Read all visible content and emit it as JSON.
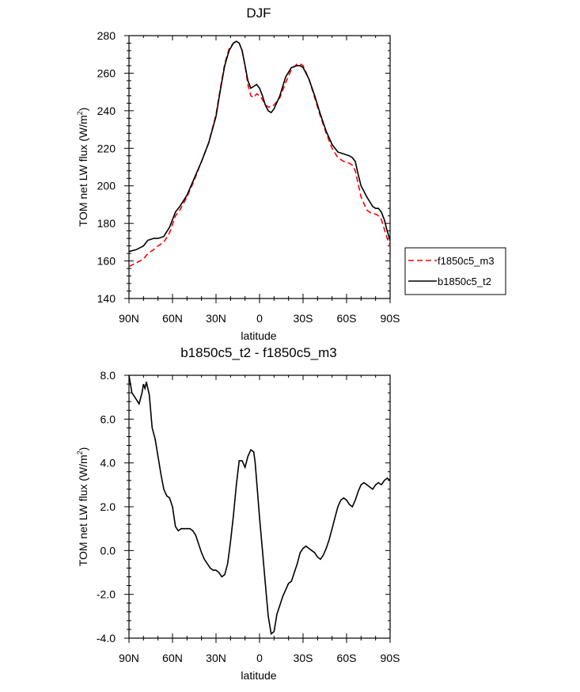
{
  "colors": {
    "series_a": "#ff0000",
    "series_b": "#000000",
    "axis": "#000000",
    "background": "#ffffff"
  },
  "chart_data": [
    {
      "type": "line",
      "title": "DJF",
      "xlabel": "latitude",
      "ylabel": "TOM net LW flux (W/m",
      "ylabel_sup": "2",
      "ylabel_close": ")",
      "xlim": [
        90,
        -90
      ],
      "ylim": [
        140,
        280
      ],
      "xticks": [
        90,
        60,
        30,
        0,
        -30,
        -60,
        -90
      ],
      "xticklabels": [
        "90N",
        "60N",
        "30N",
        "0",
        "30S",
        "60S",
        "90S"
      ],
      "yticks": [
        140,
        160,
        180,
        200,
        220,
        240,
        260,
        280
      ],
      "yticklabels": [
        "140",
        "160",
        "180",
        "200",
        "220",
        "240",
        "260",
        "280"
      ],
      "legend": {
        "position": "right",
        "entries": [
          "f1850c5_m3",
          "b1850c5_t2"
        ]
      },
      "series": [
        {
          "name": "b1850c5_t2",
          "style": "solid",
          "x": [
            90,
            85,
            80,
            77,
            73,
            70,
            66,
            62,
            58,
            55,
            50,
            45,
            40,
            35,
            30,
            27,
            24,
            21,
            18,
            16,
            14,
            12,
            10,
            8,
            6,
            4,
            2,
            0,
            -2,
            -4,
            -6,
            -8,
            -10,
            -14,
            -18,
            -22,
            -26,
            -28,
            -30,
            -34,
            -38,
            -42,
            -46,
            -50,
            -54,
            -58,
            -62,
            -64,
            -66,
            -68,
            -70,
            -74,
            -78,
            -80,
            -82,
            -84,
            -86,
            -88,
            -90
          ],
          "y": [
            165,
            166,
            168,
            171,
            172,
            172,
            173,
            178,
            186,
            189,
            195,
            204,
            213,
            223,
            237,
            251,
            264,
            272,
            276,
            277,
            276,
            272,
            264,
            256,
            252,
            253,
            254,
            252,
            248,
            243,
            240,
            239,
            241,
            248,
            258,
            263,
            264,
            264,
            263,
            257,
            248,
            238,
            229,
            222,
            218,
            217,
            216,
            215,
            213,
            206,
            200,
            194,
            189,
            188,
            188,
            186,
            182,
            176,
            171
          ]
        },
        {
          "name": "f1850c5_m3",
          "style": "dashed",
          "x": [
            90,
            85,
            80,
            77,
            73,
            70,
            66,
            62,
            58,
            55,
            50,
            45,
            40,
            35,
            30,
            27,
            24,
            21,
            18,
            16,
            14,
            12,
            10,
            8,
            6,
            4,
            2,
            0,
            -2,
            -4,
            -6,
            -8,
            -10,
            -14,
            -18,
            -22,
            -26,
            -28,
            -30,
            -34,
            -38,
            -42,
            -46,
            -50,
            -54,
            -58,
            -62,
            -64,
            -66,
            -68,
            -70,
            -74,
            -78,
            -80,
            -82,
            -84,
            -86,
            -88,
            -90
          ],
          "y": [
            157,
            159,
            161,
            164,
            166,
            168,
            170,
            175,
            184,
            187,
            194,
            203,
            213,
            223,
            238,
            252,
            265,
            273,
            276,
            277,
            276,
            272,
            264,
            254,
            248,
            247,
            249,
            248,
            246,
            243,
            242,
            242,
            243,
            247,
            255,
            262,
            265,
            265,
            264,
            257,
            247,
            237,
            228,
            220,
            215,
            213,
            212,
            211,
            208,
            201,
            194,
            187,
            185,
            185,
            184,
            182,
            177,
            172,
            168
          ]
        }
      ]
    },
    {
      "type": "line",
      "title": "b1850c5_t2 - f1850c5_m3",
      "xlabel": "latitude",
      "ylabel": "TOM net LW flux (W/m",
      "ylabel_sup": "2",
      "ylabel_close": ")",
      "xlim": [
        90,
        -90
      ],
      "ylim": [
        -4,
        8
      ],
      "xticks": [
        90,
        60,
        30,
        0,
        -30,
        -60,
        -90
      ],
      "xticklabels": [
        "90N",
        "60N",
        "30N",
        "0",
        "30S",
        "60S",
        "90S"
      ],
      "yticks": [
        -4,
        -2,
        0,
        2,
        4,
        6,
        8
      ],
      "yticklabels": [
        "-4.0",
        "-2.0",
        "0.0",
        "2.0",
        "4.0",
        "6.0",
        "8.0"
      ],
      "series": [
        {
          "name": "b1850c5_t2 - f1850c5_m3",
          "style": "solid",
          "x": [
            90,
            88,
            85,
            83,
            81,
            80,
            79,
            78,
            76,
            74,
            72,
            70,
            68,
            66,
            64,
            62,
            60,
            58,
            56,
            54,
            52,
            50,
            48,
            46,
            44,
            42,
            40,
            38,
            36,
            34,
            32,
            30,
            28,
            26,
            24,
            22,
            20,
            18,
            16,
            14,
            12,
            10,
            8,
            6,
            4,
            3,
            2,
            0,
            -2,
            -4,
            -6,
            -8,
            -10,
            -11,
            -12,
            -14,
            -16,
            -18,
            -20,
            -22,
            -24,
            -26,
            -28,
            -30,
            -32,
            -34,
            -36,
            -38,
            -40,
            -42,
            -44,
            -46,
            -48,
            -50,
            -52,
            -54,
            -56,
            -58,
            -60,
            -62,
            -64,
            -66,
            -68,
            -70,
            -72,
            -74,
            -76,
            -78,
            -80,
            -82,
            -84,
            -86,
            -88,
            -90
          ],
          "y": [
            8.0,
            7.2,
            6.9,
            6.7,
            7.2,
            7.6,
            7.4,
            7.7,
            7.1,
            5.6,
            5.1,
            4.3,
            3.5,
            2.8,
            2.5,
            2.4,
            2.0,
            1.1,
            0.9,
            1.0,
            1.0,
            1.0,
            1.0,
            0.9,
            0.7,
            0.3,
            -0.1,
            -0.4,
            -0.6,
            -0.8,
            -0.9,
            -0.9,
            -1.0,
            -1.2,
            -1.1,
            -0.6,
            0.4,
            1.6,
            3.0,
            4.1,
            4.1,
            3.8,
            4.3,
            4.6,
            4.5,
            4.0,
            3.2,
            1.5,
            0.0,
            -1.5,
            -3.0,
            -3.8,
            -3.7,
            -3.3,
            -2.9,
            -2.5,
            -2.1,
            -1.8,
            -1.5,
            -1.4,
            -1.0,
            -0.6,
            -0.1,
            0.1,
            0.2,
            0.1,
            0.0,
            -0.1,
            -0.3,
            -0.4,
            -0.2,
            0.1,
            0.5,
            1.0,
            1.5,
            2.0,
            2.3,
            2.4,
            2.3,
            2.1,
            2.0,
            2.3,
            2.7,
            3.0,
            3.1,
            3.0,
            2.9,
            2.8,
            3.0,
            3.1,
            3.0,
            3.2,
            3.3,
            3.2
          ]
        }
      ]
    }
  ]
}
